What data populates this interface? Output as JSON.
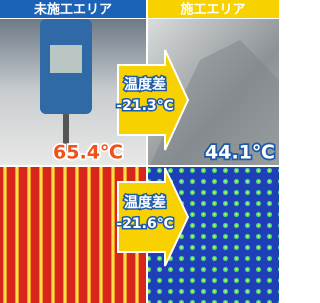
{
  "header": {
    "left": "未施工エリア",
    "right": "施工エリア"
  },
  "photo": {
    "left_reading": "65.4℃",
    "right_reading": "44.1℃",
    "label": "温度差",
    "difference": "-21.3℃"
  },
  "thermal": {
    "label": "温度差",
    "difference": "-21.6℃"
  }
}
